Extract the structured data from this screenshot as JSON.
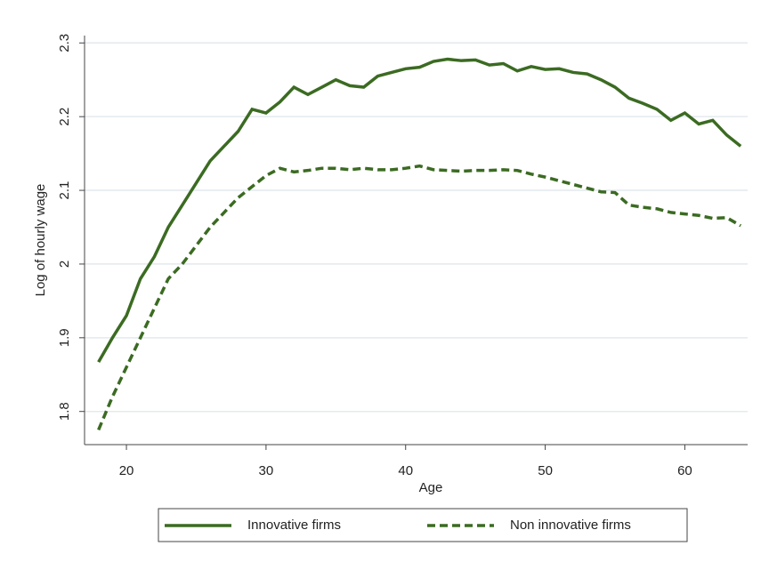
{
  "chart_data": {
    "type": "line",
    "x_label": "Age",
    "y_label": "Log of hourly wage",
    "x": [
      18,
      19,
      20,
      21,
      22,
      23,
      24,
      25,
      26,
      27,
      28,
      29,
      30,
      31,
      32,
      33,
      34,
      35,
      36,
      37,
      38,
      39,
      40,
      41,
      42,
      43,
      44,
      45,
      46,
      47,
      48,
      49,
      50,
      51,
      52,
      53,
      54,
      55,
      56,
      57,
      58,
      59,
      60,
      61,
      62,
      63,
      64
    ],
    "series": [
      {
        "name": "Innovative firms",
        "color": "#3b6b22",
        "dash": false,
        "values": [
          1.867,
          1.9,
          1.93,
          1.98,
          2.01,
          2.05,
          2.08,
          2.11,
          2.14,
          2.16,
          2.18,
          2.21,
          2.205,
          2.22,
          2.24,
          2.23,
          2.24,
          2.25,
          2.242,
          2.24,
          2.255,
          2.26,
          2.265,
          2.267,
          2.275,
          2.278,
          2.276,
          2.277,
          2.27,
          2.272,
          2.262,
          2.268,
          2.264,
          2.265,
          2.26,
          2.258,
          2.25,
          2.24,
          2.225,
          2.218,
          2.21,
          2.195,
          2.205,
          2.19,
          2.195,
          2.175,
          2.16
        ]
      },
      {
        "name": "Non innovative firms",
        "color": "#3b6b22",
        "dash": true,
        "values": [
          1.775,
          1.82,
          1.86,
          1.9,
          1.94,
          1.98,
          2.0,
          2.025,
          2.05,
          2.07,
          2.09,
          2.105,
          2.12,
          2.13,
          2.125,
          2.127,
          2.13,
          2.13,
          2.128,
          2.13,
          2.128,
          2.128,
          2.13,
          2.133,
          2.128,
          2.127,
          2.126,
          2.127,
          2.127,
          2.128,
          2.127,
          2.122,
          2.118,
          2.113,
          2.108,
          2.103,
          2.098,
          2.097,
          2.08,
          2.077,
          2.075,
          2.07,
          2.068,
          2.066,
          2.062,
          2.063,
          2.052
        ]
      }
    ],
    "xlim": [
      17,
      64.5
    ],
    "xticks": [
      20,
      30,
      40,
      50,
      60
    ],
    "ylim": [
      1.755,
      2.31
    ],
    "yticks": [
      1.8,
      1.9,
      2,
      2.1,
      2.2,
      2.3
    ],
    "grid": true,
    "legend": "bottom"
  }
}
